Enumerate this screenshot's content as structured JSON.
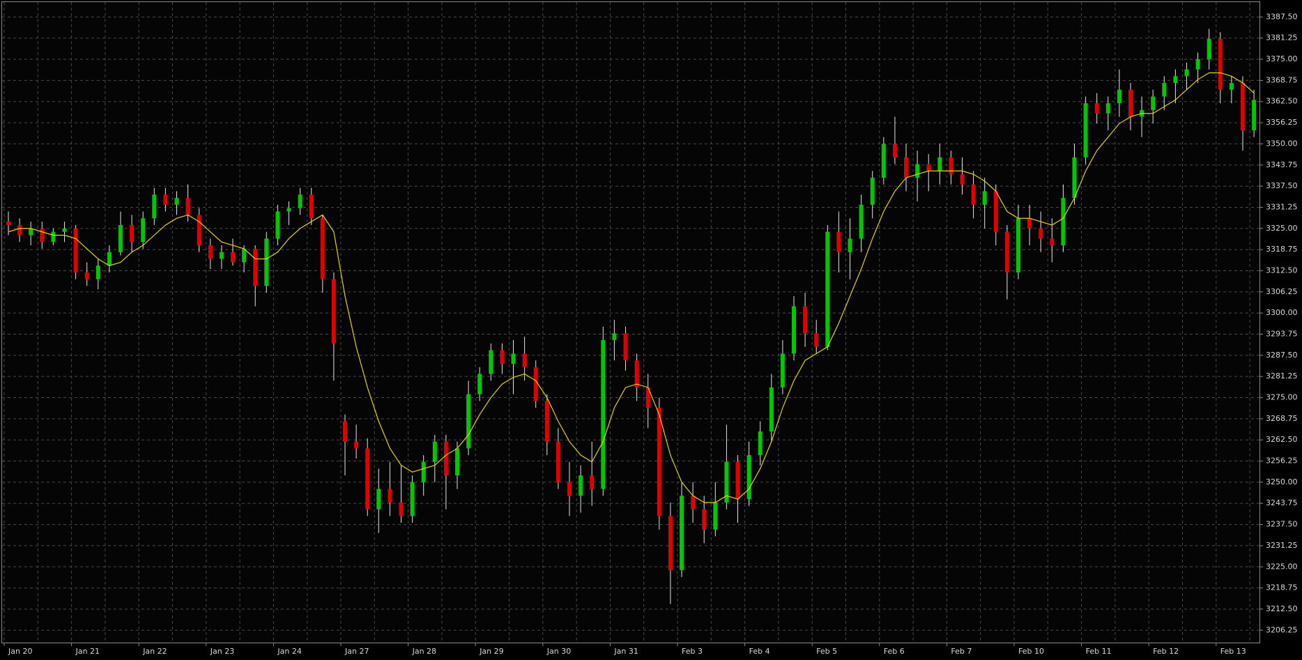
{
  "chart_data": {
    "type": "candlestick",
    "categories": [
      "Jan 20",
      null,
      null,
      null,
      null,
      null,
      "Jan 21",
      null,
      null,
      null,
      null,
      null,
      "Jan 22",
      null,
      null,
      null,
      null,
      null,
      "Jan 23",
      null,
      null,
      null,
      null,
      null,
      "Jan 24",
      null,
      null,
      null,
      null,
      null,
      "Jan 27",
      null,
      null,
      null,
      null,
      null,
      "Jan 28",
      null,
      null,
      null,
      null,
      null,
      "Jan 29",
      null,
      null,
      null,
      null,
      null,
      "Jan 30",
      null,
      null,
      null,
      null,
      null,
      "Jan 31",
      null,
      null,
      null,
      null,
      null,
      "Feb 3",
      null,
      null,
      null,
      null,
      null,
      "Feb 4",
      null,
      null,
      null,
      null,
      null,
      "Feb 5",
      null,
      null,
      null,
      null,
      null,
      "Feb 6",
      null,
      null,
      null,
      null,
      null,
      "Feb 7",
      null,
      null,
      null,
      null,
      null,
      "Feb 10",
      null,
      null,
      null,
      null,
      null,
      "Feb 11",
      null,
      null,
      null,
      null,
      null,
      "Feb 12",
      null,
      null,
      null,
      null,
      null,
      "Feb 13",
      null,
      null,
      null
    ],
    "open": [
      3327,
      3326,
      3323,
      3325,
      3321,
      3324,
      3325,
      3312,
      3310,
      3314,
      3318,
      3326,
      3321,
      3328,
      3335,
      3332,
      3334,
      3329,
      3320,
      3316,
      3318,
      3315,
      3319,
      3308,
      3322,
      3330,
      3331,
      3335,
      3328,
      3310,
      3268,
      3262,
      3260,
      3242,
      3248,
      3244,
      3240,
      3250,
      3256,
      3262,
      3252,
      3260,
      3276,
      3282,
      3289,
      3285,
      3288,
      3284,
      3274,
      3262,
      3250,
      3246,
      3252,
      3248,
      3292,
      3294,
      3286,
      3278,
      3272,
      3240,
      3224,
      3246,
      3242,
      3236,
      3244,
      3256,
      3245,
      3258,
      3265,
      3278,
      3288,
      3302,
      3294,
      3290,
      3324,
      3318,
      3322,
      3332,
      3340,
      3350,
      3346,
      3340,
      3344,
      3342,
      3346,
      3341,
      3338,
      3332,
      3336,
      3324,
      3312,
      3328,
      3325,
      3322,
      3320,
      3334,
      3346,
      3362,
      3359,
      3362,
      3366,
      3358,
      3360,
      3364,
      3368,
      3370,
      3372,
      3375,
      3381,
      3366,
      3368,
      3354
    ],
    "high": [
      3330,
      3328,
      3327,
      3327,
      3325,
      3327,
      3326,
      3315,
      3316,
      3320,
      3330,
      3329,
      3330,
      3337,
      3337,
      3336,
      3338,
      3331,
      3322,
      3320,
      3322,
      3320,
      3320,
      3324,
      3332,
      3333,
      3337,
      3337,
      3329,
      3312,
      3270,
      3267,
      3263,
      3254,
      3256,
      3255,
      3252,
      3258,
      3264,
      3264,
      3262,
      3280,
      3284,
      3291,
      3291,
      3292,
      3293,
      3286,
      3276,
      3266,
      3256,
      3255,
      3262,
      3296,
      3298,
      3296,
      3288,
      3282,
      3275,
      3244,
      3250,
      3250,
      3246,
      3250,
      3267,
      3258,
      3262,
      3268,
      3282,
      3292,
      3305,
      3306,
      3298,
      3326,
      3330,
      3328,
      3335,
      3342,
      3352,
      3358,
      3350,
      3348,
      3347,
      3350,
      3348,
      3346,
      3342,
      3340,
      3338,
      3326,
      3332,
      3332,
      3330,
      3328,
      3338,
      3350,
      3364,
      3365,
      3364,
      3372,
      3368,
      3364,
      3366,
      3370,
      3372,
      3374,
      3377,
      3384,
      3383,
      3370,
      3370,
      3366
    ],
    "low": [
      3323,
      3321,
      3320,
      3319,
      3320,
      3321,
      3310,
      3308,
      3307,
      3312,
      3317,
      3318,
      3319,
      3326,
      3330,
      3329,
      3327,
      3318,
      3313,
      3313,
      3314,
      3312,
      3302,
      3306,
      3320,
      3326,
      3329,
      3326,
      3306,
      3280,
      3252,
      3257,
      3240,
      3235,
      3240,
      3238,
      3238,
      3246,
      3250,
      3242,
      3248,
      3258,
      3274,
      3280,
      3282,
      3276,
      3280,
      3272,
      3258,
      3248,
      3240,
      3241,
      3243,
      3246,
      3286,
      3283,
      3274,
      3266,
      3236,
      3214,
      3222,
      3238,
      3232,
      3234,
      3242,
      3238,
      3243,
      3255,
      3262,
      3276,
      3286,
      3290,
      3288,
      3289,
      3312,
      3310,
      3318,
      3328,
      3338,
      3344,
      3336,
      3333,
      3336,
      3338,
      3338,
      3335,
      3328,
      3325,
      3320,
      3304,
      3310,
      3320,
      3318,
      3315,
      3318,
      3332,
      3344,
      3356,
      3354,
      3358,
      3354,
      3352,
      3356,
      3360,
      3362,
      3366,
      3368,
      3372,
      3362,
      3362,
      3348,
      3352
    ],
    "close": [
      3326,
      3323,
      3325,
      3321,
      3324,
      3325,
      3312,
      3310,
      3314,
      3318,
      3326,
      3321,
      3328,
      3335,
      3332,
      3334,
      3329,
      3320,
      3316,
      3318,
      3315,
      3319,
      3308,
      3322,
      3330,
      3331,
      3335,
      3328,
      3310,
      3291,
      3262,
      3260,
      3242,
      3248,
      3244,
      3240,
      3250,
      3256,
      3262,
      3252,
      3260,
      3276,
      3282,
      3289,
      3285,
      3288,
      3284,
      3274,
      3262,
      3250,
      3246,
      3252,
      3248,
      3292,
      3294,
      3286,
      3278,
      3272,
      3240,
      3224,
      3246,
      3242,
      3236,
      3244,
      3256,
      3245,
      3258,
      3265,
      3278,
      3288,
      3302,
      3294,
      3290,
      3324,
      3318,
      3322,
      3332,
      3340,
      3350,
      3346,
      3340,
      3344,
      3342,
      3346,
      3341,
      3338,
      3332,
      3336,
      3324,
      3312,
      3328,
      3325,
      3322,
      3320,
      3334,
      3346,
      3362,
      3359,
      3362,
      3366,
      3358,
      3360,
      3364,
      3368,
      3370,
      3372,
      3375,
      3381,
      3366,
      3368,
      3354,
      3363
    ],
    "up_color": "#00c800",
    "down_color": "#e00000",
    "wick_color": "#e6e6e6",
    "moving_average": {
      "color": "#e8d200",
      "values": [
        3324,
        3325,
        3325,
        3324,
        3323,
        3323,
        3322,
        3319,
        3316,
        3314,
        3315,
        3318,
        3320,
        3323,
        3326,
        3328,
        3329,
        3327,
        3324,
        3321,
        3320,
        3319,
        3316,
        3316,
        3318,
        3322,
        3325,
        3327,
        3329,
        3324,
        3305,
        3290,
        3278,
        3268,
        3260,
        3255,
        3253,
        3254,
        3255,
        3258,
        3260,
        3264,
        3270,
        3275,
        3279,
        3281,
        3282,
        3280,
        3275,
        3268,
        3262,
        3258,
        3256,
        3262,
        3272,
        3278,
        3279,
        3278,
        3270,
        3258,
        3250,
        3246,
        3244,
        3244,
        3246,
        3245,
        3248,
        3254,
        3262,
        3272,
        3280,
        3286,
        3288,
        3290,
        3297,
        3305,
        3313,
        3322,
        3330,
        3336,
        3340,
        3341,
        3342,
        3342,
        3342,
        3342,
        3341,
        3339,
        3336,
        3330,
        3328,
        3328,
        3327,
        3326,
        3328,
        3334,
        3342,
        3348,
        3352,
        3356,
        3358,
        3359,
        3359,
        3361,
        3363,
        3366,
        3369,
        3371,
        3371,
        3370,
        3368,
        3365
      ]
    },
    "ylim": [
      3202.6,
      3391.9
    ],
    "yticks": [
      3206.25,
      {
        "value": 3212.5,
        "label": "3212.50"
      },
      3218.75,
      {
        "value": 3225,
        "label": "3225.00"
      },
      3231.25,
      {
        "value": 3237.5,
        "label": "3237.50"
      },
      3243.75,
      {
        "value": 3250,
        "label": "3250.00"
      },
      3256.25,
      {
        "value": 3262.5,
        "label": "3262.50"
      },
      3268.75,
      {
        "value": 3275,
        "label": "3275.00"
      },
      3281.25,
      {
        "value": 3287.5,
        "label": "3287.50"
      },
      3293.75,
      {
        "value": 3300,
        "label": "3300.00"
      },
      3306.25,
      {
        "value": 3312.5,
        "label": "3312.50"
      },
      3318.75,
      {
        "value": 3325,
        "label": "3325.00"
      },
      3331.25,
      {
        "value": 3337.5,
        "label": "3337.50"
      },
      3343.75,
      {
        "value": 3350,
        "label": "3350.00"
      },
      3356.25,
      {
        "value": 3362.5,
        "label": "3362.50"
      },
      3368.75,
      {
        "value": 3375,
        "label": "3375.00"
      },
      3381.25,
      {
        "value": 3387.5,
        "label": "3387.50"
      }
    ],
    "grid": true
  }
}
